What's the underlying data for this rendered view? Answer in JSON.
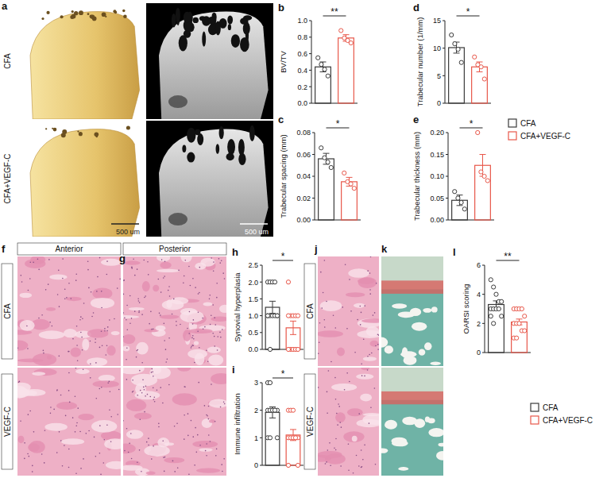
{
  "chart_data": [
    {
      "type": "bar",
      "panel_label": "b",
      "y_label": "BV/TV",
      "annotation": "**",
      "tick_labels": "y",
      "colors": [
        "#3a3a3a",
        "#e8574a"
      ],
      "values": [
        0.44,
        0.79
      ],
      "errors": [
        0.06,
        0.04
      ],
      "points": [
        [
          0.55,
          0.47,
          0.41,
          0.33
        ],
        [
          0.88,
          0.79,
          0.76,
          0.73
        ]
      ],
      "ylim": [
        0,
        1.0
      ],
      "yticks": [
        {
          "value": 0,
          "label": "0.0"
        },
        0.2,
        0.4,
        0.6,
        0.8,
        {
          "value": 1,
          "label": "1.0"
        }
      ]
    },
    {
      "type": "bar",
      "panel_label": "c",
      "y_label": "Trabecular spacing (mm)",
      "annotation": "*",
      "tick_labels": "y",
      "colors": [
        "#3a3a3a",
        "#e8574a"
      ],
      "values": [
        0.056,
        0.035
      ],
      "errors": [
        0.005,
        0.004
      ],
      "points": [
        [
          0.066,
          0.057,
          0.053,
          0.048
        ],
        [
          0.043,
          0.035,
          0.033,
          0.029
        ]
      ],
      "ylim": [
        0,
        0.08
      ],
      "yticks": [
        {
          "value": 0,
          "label": "0.00"
        },
        0.02,
        0.04,
        0.06,
        0.08
      ]
    },
    {
      "type": "bar",
      "panel_label": "d",
      "y_label": "Trabecular number (1/mm)",
      "annotation": "*",
      "tick_labels": "y",
      "colors": [
        "#3a3a3a",
        "#e8574a"
      ],
      "values": [
        10.1,
        6.6
      ],
      "errors": [
        1.0,
        0.9
      ],
      "points": [
        [
          12.4,
          10.8,
          9.8,
          7.4
        ],
        [
          8.4,
          7.0,
          6.6,
          4.4
        ]
      ],
      "ylim": [
        0,
        15
      ],
      "yticks": [
        0,
        5,
        10,
        15
      ]
    },
    {
      "type": "bar",
      "panel_label": "e",
      "y_label": "Trabecular thickness (mm)",
      "annotation": "*",
      "tick_labels": "y",
      "colors": [
        "#3a3a3a",
        "#e8574a"
      ],
      "values": [
        0.045,
        0.125
      ],
      "errors": [
        0.012,
        0.025
      ],
      "points": [
        [
          0.065,
          0.05,
          0.04,
          0.025
        ],
        [
          0.2,
          0.11,
          0.1,
          0.09
        ]
      ],
      "ylim": [
        0,
        0.2
      ],
      "yticks": [
        {
          "value": 0,
          "label": "0.00"
        },
        0.05,
        {
          "value": 0.1,
          "label": "0.10"
        },
        0.15,
        {
          "value": 0.2,
          "label": "0.20"
        }
      ]
    },
    {
      "type": "bar",
      "panel_label": "h",
      "y_label": "Synovial hyperplasia",
      "annotation": "*",
      "tick_labels": "y",
      "colors": [
        "#3a3a3a",
        "#e8574a"
      ],
      "values": [
        1.25,
        0.64
      ],
      "errors": [
        0.18,
        0.2
      ],
      "points": [
        [
          2,
          2,
          2,
          2,
          1,
          1,
          1,
          1,
          1,
          1,
          1,
          0
        ],
        [
          2,
          1,
          1,
          1,
          1,
          1,
          0,
          0,
          0,
          0,
          0
        ]
      ],
      "ylim": [
        0,
        2.5
      ],
      "yticks": [
        {
          "value": 0,
          "label": "0.0"
        },
        0.5,
        {
          "value": 1,
          "label": "1.0"
        },
        1.5,
        {
          "value": 2,
          "label": "2.0"
        },
        2.5
      ]
    },
    {
      "type": "bar",
      "panel_label": "i",
      "y_label": "Immune infiltration",
      "annotation": "*",
      "tick_labels": "y",
      "colors": [
        "#3a3a3a",
        "#e8574a"
      ],
      "values": [
        1.92,
        1.1
      ],
      "errors": [
        0.2,
        0.2
      ],
      "points": [
        [
          3,
          3,
          2,
          2,
          2,
          2,
          2,
          2,
          2,
          1,
          1,
          1
        ],
        [
          2,
          2,
          2,
          1,
          1,
          1,
          1,
          1,
          1,
          0,
          0
        ]
      ],
      "ylim": [
        0,
        3
      ],
      "yticks": [
        0,
        1,
        2,
        3
      ]
    },
    {
      "type": "bar",
      "panel_label": "l",
      "y_label": "OARSI scoring",
      "annotation": "**",
      "tick_labels": "y",
      "colors": [
        "#3a3a3a",
        "#e8574a"
      ],
      "values": [
        3.3,
        2.1
      ],
      "errors": [
        0.25,
        0.2
      ],
      "points": [
        [
          5,
          4.5,
          4,
          3.5,
          3.5,
          3,
          3,
          3,
          3,
          2.5,
          2.5,
          2
        ],
        [
          3,
          3,
          3,
          3,
          2.5,
          2,
          2,
          2,
          1.5,
          1.5,
          1,
          1
        ]
      ],
      "ylim": [
        0,
        6
      ],
      "yticks": [
        0,
        2,
        4,
        6
      ]
    }
  ],
  "legend_groups": [
    [
      {
        "name": "CFA",
        "color": "#3a3a3a"
      },
      {
        "name": "CFA+VEGF-C",
        "color": "#e8574a"
      }
    ],
    [
      {
        "name": "CFA",
        "color": "#3a3a3a"
      },
      {
        "name": "CFA+VEGF-C",
        "color": "#e8574a"
      }
    ]
  ],
  "image_panels": {
    "a": {
      "panel_label": "a",
      "row_labels": [
        "CFA",
        "CFA+VEGF-C"
      ],
      "scale_bar": "500 um"
    },
    "f": {
      "panel_label": "f",
      "header": "Anterior",
      "row_labels": [
        "CFA",
        "VEGF-C"
      ]
    },
    "g": {
      "panel_label": "g",
      "header": "Posterior"
    },
    "j": {
      "panel_label": "j",
      "row_labels": [
        "CFA",
        "VEGF-C"
      ]
    },
    "k": {
      "panel_label": "k"
    }
  }
}
